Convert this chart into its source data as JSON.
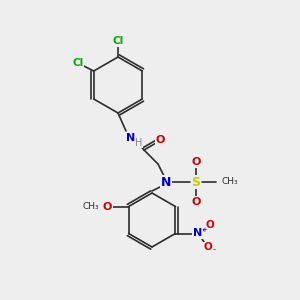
{
  "bg_color": "#eeeeee",
  "bond_color": "#2d2d2d",
  "colors": {
    "C": "#2d2d2d",
    "N": "#0000cc",
    "O": "#cc0000",
    "S": "#cccc00",
    "Cl": "#00aa00",
    "H": "#888888"
  },
  "font_size": 7.5,
  "bond_width": 1.2
}
